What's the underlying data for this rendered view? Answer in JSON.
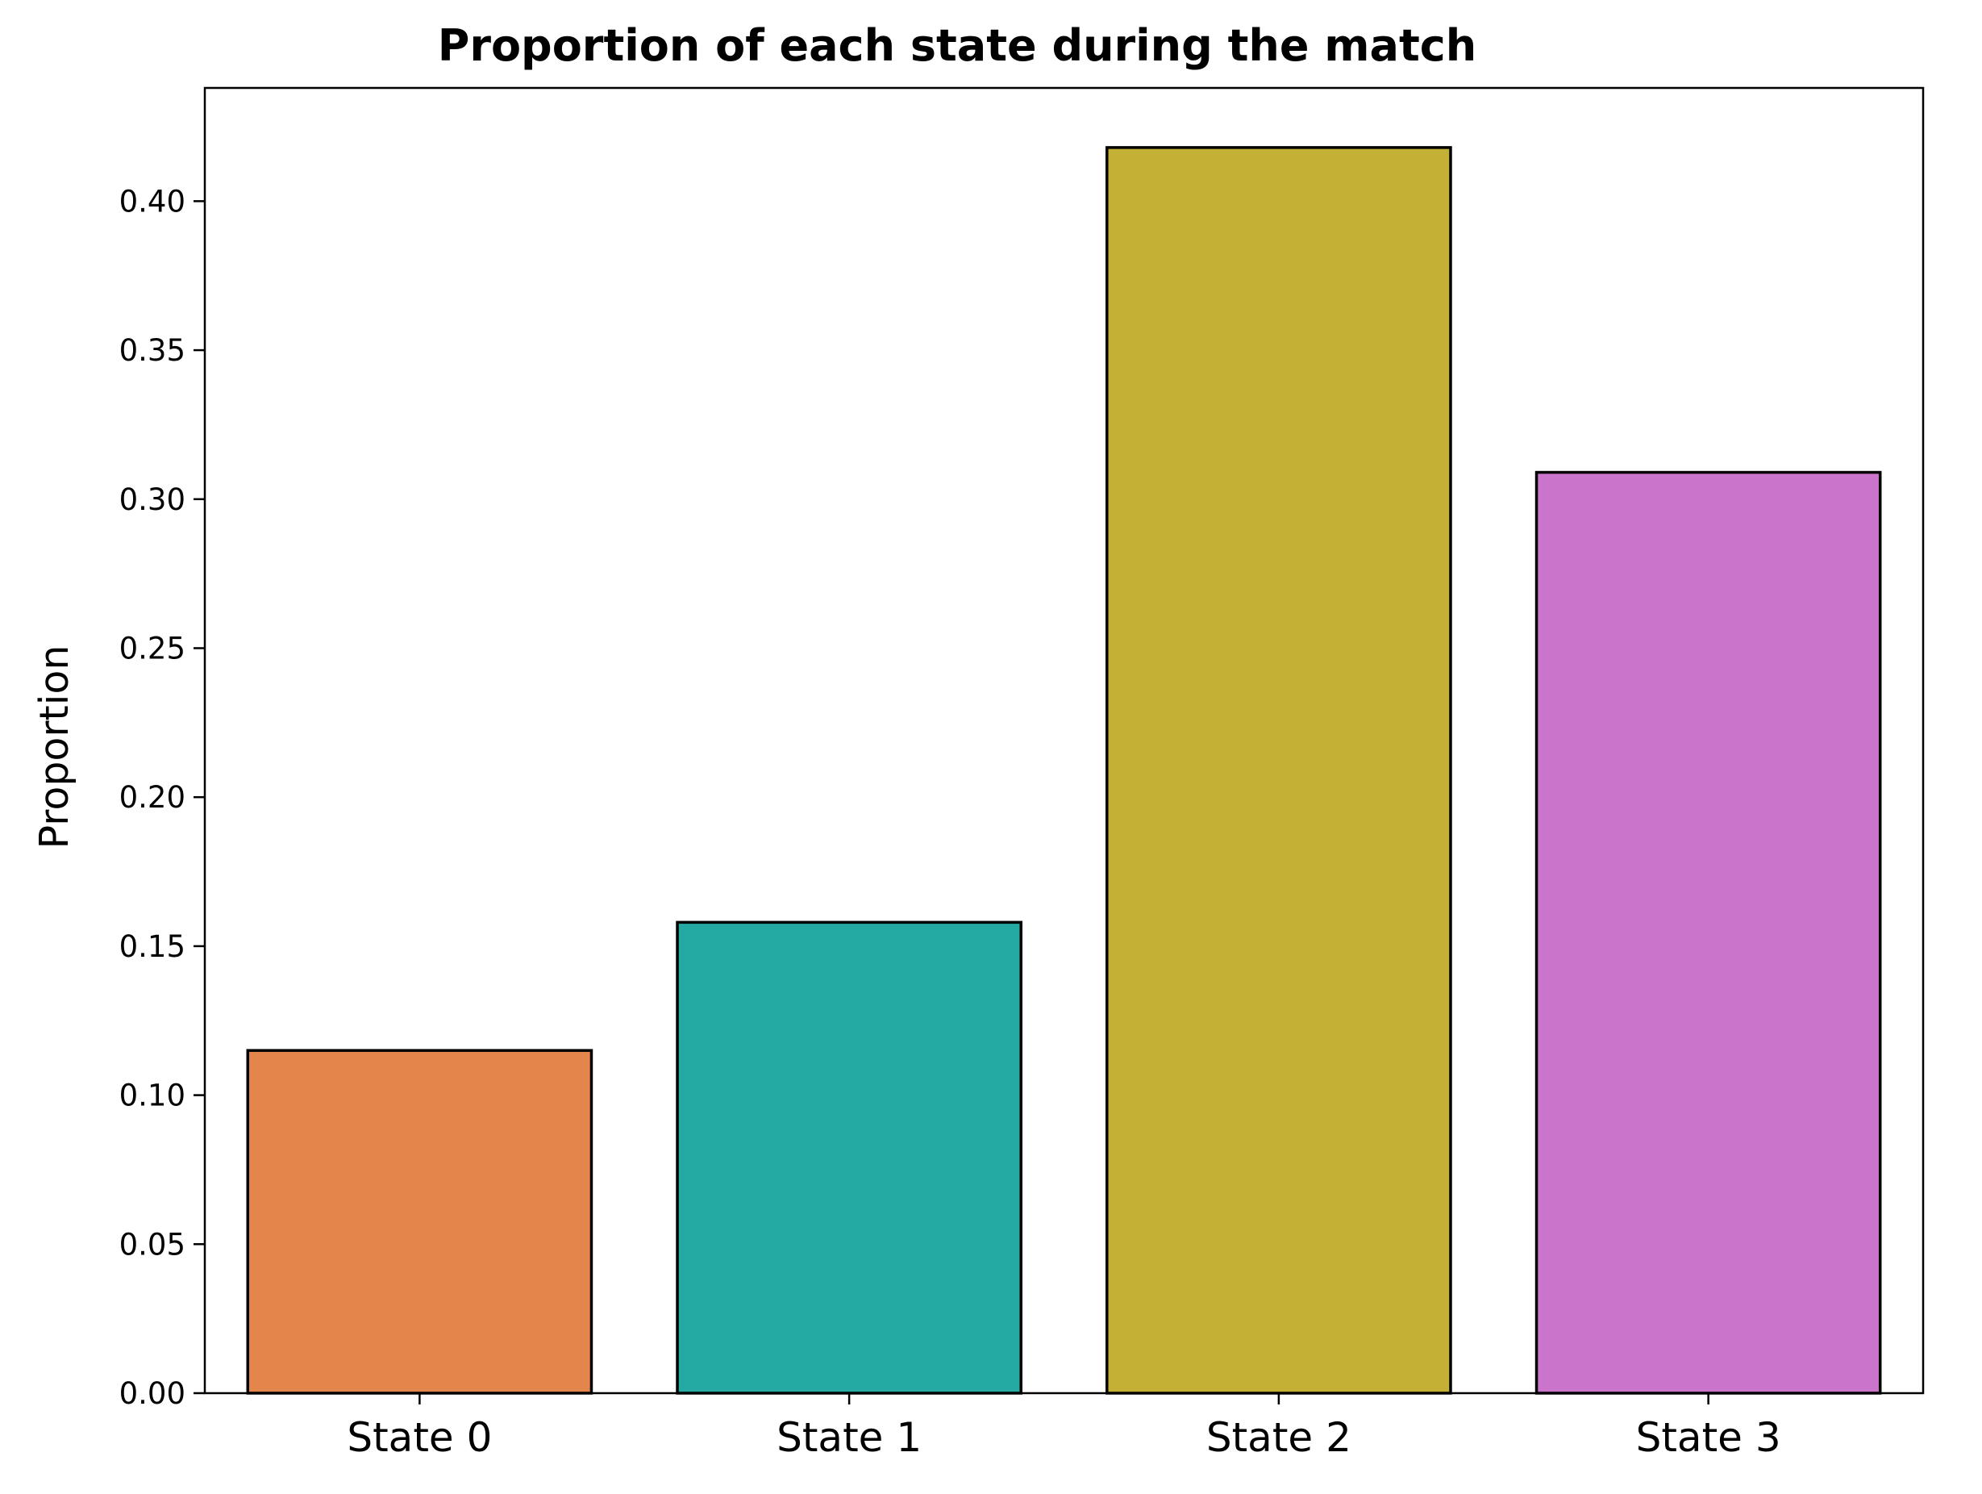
{
  "chart_data": {
    "type": "bar",
    "title": "Proportion of each state during the match",
    "xlabel": "",
    "ylabel": "Proportion",
    "categories": [
      "State 0",
      "State 1",
      "State 2",
      "State 3"
    ],
    "values": [
      0.115,
      0.158,
      0.418,
      0.309
    ],
    "colors": [
      "#E4854B",
      "#24AAA2",
      "#C4B035",
      "#CB74CB"
    ],
    "edge_color": "#000000",
    "ylim": [
      0,
      0.438
    ],
    "yticks": [
      0.0,
      0.05,
      0.1,
      0.15,
      0.2,
      0.25,
      0.3,
      0.35,
      0.4
    ],
    "ytick_labels": [
      "0.00",
      "0.05",
      "0.10",
      "0.15",
      "0.20",
      "0.25",
      "0.30",
      "0.35",
      "0.40"
    ],
    "grid": false,
    "legend": "none"
  }
}
